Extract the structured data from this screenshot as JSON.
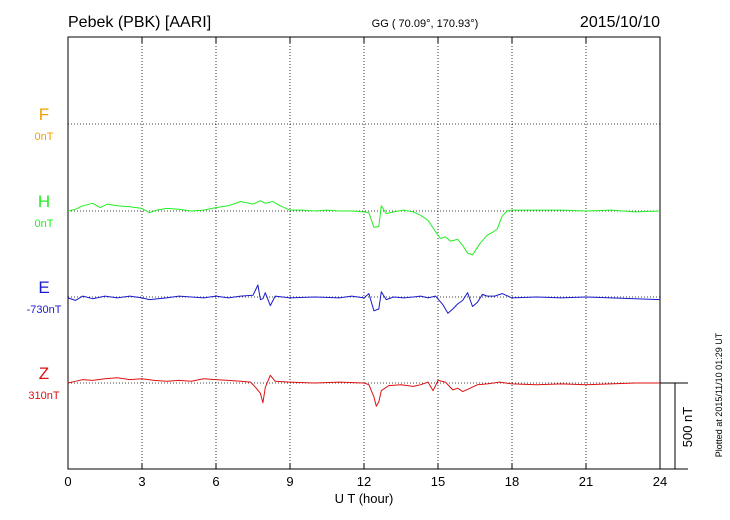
{
  "header": {
    "station": "Pebek (PBK)  [AARI]",
    "coords": "GG ( 70.09°, 170.93°)",
    "date": "2015/10/10"
  },
  "side_note": "Plotted at 2015/11/10 01:29 UT",
  "chart_data": {
    "type": "line",
    "title": "Pebek (PBK)  [AARI]",
    "xlabel": "U T (hour)",
    "xlim": [
      0,
      24
    ],
    "xticks": [
      0,
      3,
      6,
      9,
      12,
      15,
      18,
      21,
      24
    ],
    "grid": true,
    "scale_bar": {
      "label": "500 nT",
      "value_nT": 500
    },
    "series": [
      {
        "name": "F",
        "baseline": "0nT",
        "color": "#f0a000",
        "points": []
      },
      {
        "name": "H",
        "baseline": "0nT",
        "color": "#22ee22",
        "points": [
          [
            0,
            0
          ],
          [
            0.3,
            10
          ],
          [
            0.6,
            30
          ],
          [
            1,
            45
          ],
          [
            1.3,
            20
          ],
          [
            1.6,
            40
          ],
          [
            2,
            30
          ],
          [
            2.5,
            25
          ],
          [
            3,
            15
          ],
          [
            3.3,
            -10
          ],
          [
            3.6,
            5
          ],
          [
            4,
            15
          ],
          [
            4.5,
            10
          ],
          [
            5,
            0
          ],
          [
            5.5,
            5
          ],
          [
            6,
            20
          ],
          [
            6.5,
            30
          ],
          [
            7,
            55
          ],
          [
            7.5,
            40
          ],
          [
            7.8,
            60
          ],
          [
            8,
            45
          ],
          [
            8.3,
            55
          ],
          [
            8.6,
            30
          ],
          [
            9,
            5
          ],
          [
            9.5,
            5
          ],
          [
            10,
            0
          ],
          [
            10.5,
            5
          ],
          [
            11,
            0
          ],
          [
            11.5,
            0
          ],
          [
            12,
            -5
          ],
          [
            12.2,
            -10
          ],
          [
            12.4,
            -95
          ],
          [
            12.6,
            -90
          ],
          [
            12.7,
            30
          ],
          [
            12.9,
            -15
          ],
          [
            13.2,
            -5
          ],
          [
            13.6,
            5
          ],
          [
            14,
            -5
          ],
          [
            14.3,
            -25
          ],
          [
            14.6,
            -55
          ],
          [
            14.9,
            -120
          ],
          [
            15.1,
            -160
          ],
          [
            15.3,
            -150
          ],
          [
            15.5,
            -175
          ],
          [
            15.8,
            -165
          ],
          [
            16,
            -200
          ],
          [
            16.2,
            -245
          ],
          [
            16.4,
            -255
          ],
          [
            16.7,
            -190
          ],
          [
            17,
            -140
          ],
          [
            17.2,
            -125
          ],
          [
            17.4,
            -105
          ],
          [
            17.6,
            -30
          ],
          [
            17.8,
            0
          ],
          [
            18,
            5
          ],
          [
            19,
            5
          ],
          [
            20,
            5
          ],
          [
            21,
            0
          ],
          [
            22,
            5
          ],
          [
            23,
            -5
          ],
          [
            24,
            0
          ]
        ]
      },
      {
        "name": "E",
        "baseline": "-730nT",
        "color": "#1a1acc",
        "points": [
          [
            0,
            -5
          ],
          [
            0.3,
            -20
          ],
          [
            0.6,
            5
          ],
          [
            1,
            -10
          ],
          [
            1.5,
            5
          ],
          [
            2,
            -5
          ],
          [
            2.5,
            5
          ],
          [
            3,
            -5
          ],
          [
            3.3,
            -15
          ],
          [
            4,
            -5
          ],
          [
            4.5,
            5
          ],
          [
            5,
            0
          ],
          [
            5.5,
            -5
          ],
          [
            6,
            5
          ],
          [
            6.5,
            -5
          ],
          [
            7,
            5
          ],
          [
            7.5,
            10
          ],
          [
            7.7,
            70
          ],
          [
            7.8,
            -15
          ],
          [
            7.9,
            -10
          ],
          [
            8,
            25
          ],
          [
            8.2,
            -50
          ],
          [
            8.4,
            5
          ],
          [
            9,
            -5
          ],
          [
            10,
            0
          ],
          [
            11,
            -5
          ],
          [
            11.5,
            5
          ],
          [
            12,
            -5
          ],
          [
            12.2,
            20
          ],
          [
            12.4,
            -80
          ],
          [
            12.6,
            -70
          ],
          [
            12.7,
            30
          ],
          [
            12.9,
            -15
          ],
          [
            13.2,
            0
          ],
          [
            13.6,
            -5
          ],
          [
            14,
            0
          ],
          [
            14.3,
            5
          ],
          [
            14.6,
            -5
          ],
          [
            14.9,
            5
          ],
          [
            15.2,
            -45
          ],
          [
            15.4,
            -95
          ],
          [
            15.6,
            -70
          ],
          [
            15.8,
            -40
          ],
          [
            16,
            -20
          ],
          [
            16.2,
            25
          ],
          [
            16.4,
            -55
          ],
          [
            16.6,
            -30
          ],
          [
            16.8,
            15
          ],
          [
            17,
            5
          ],
          [
            17.3,
            5
          ],
          [
            17.6,
            20
          ],
          [
            18,
            -5
          ],
          [
            19,
            0
          ],
          [
            20,
            -5
          ],
          [
            21,
            0
          ],
          [
            22,
            -5
          ],
          [
            23,
            -10
          ],
          [
            24,
            -15
          ]
        ]
      },
      {
        "name": "Z",
        "baseline": "310nT",
        "color": "#dd1111",
        "points": [
          [
            0,
            0
          ],
          [
            0.3,
            10
          ],
          [
            0.6,
            20
          ],
          [
            1,
            15
          ],
          [
            1.5,
            25
          ],
          [
            2,
            30
          ],
          [
            2.5,
            20
          ],
          [
            3,
            25
          ],
          [
            3.5,
            15
          ],
          [
            4,
            10
          ],
          [
            4.5,
            15
          ],
          [
            5,
            10
          ],
          [
            5.5,
            25
          ],
          [
            6,
            20
          ],
          [
            6.5,
            15
          ],
          [
            7,
            10
          ],
          [
            7.4,
            5
          ],
          [
            7.6,
            -25
          ],
          [
            7.8,
            -60
          ],
          [
            7.9,
            -115
          ],
          [
            8,
            -25
          ],
          [
            8.2,
            45
          ],
          [
            8.4,
            10
          ],
          [
            9,
            5
          ],
          [
            10,
            0
          ],
          [
            11,
            5
          ],
          [
            12,
            0
          ],
          [
            12.2,
            -10
          ],
          [
            12.4,
            -80
          ],
          [
            12.5,
            -135
          ],
          [
            12.6,
            -110
          ],
          [
            12.7,
            -45
          ],
          [
            13,
            -15
          ],
          [
            13.5,
            -10
          ],
          [
            14,
            -20
          ],
          [
            14.3,
            -10
          ],
          [
            14.6,
            5
          ],
          [
            14.8,
            -45
          ],
          [
            15,
            15
          ],
          [
            15.3,
            5
          ],
          [
            15.6,
            -40
          ],
          [
            15.8,
            -30
          ],
          [
            16,
            -50
          ],
          [
            16.3,
            -30
          ],
          [
            16.6,
            -10
          ],
          [
            17,
            -5
          ],
          [
            17.5,
            5
          ],
          [
            18,
            -5
          ],
          [
            19,
            -10
          ],
          [
            20,
            -5
          ],
          [
            21,
            -10
          ],
          [
            22,
            -5
          ],
          [
            23,
            0
          ],
          [
            24,
            0
          ]
        ]
      }
    ]
  }
}
